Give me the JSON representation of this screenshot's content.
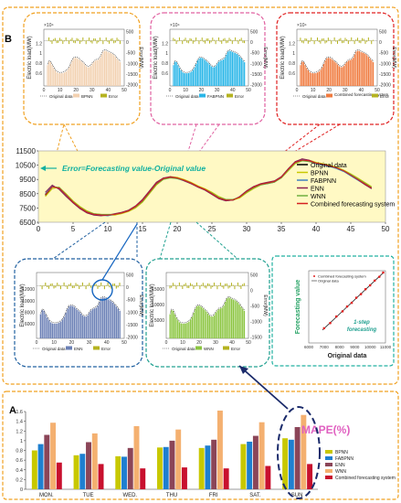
{
  "labels": {
    "panel_b": "B",
    "panel_a": "A",
    "error_eq": "Error=Forecasting value-Original value",
    "mape": "MAPE(%)",
    "step": "1-step",
    "step2": "forecasting",
    "sci": "×10⁴",
    "forecasting_value": "Forecasting value",
    "original_data": "Original data",
    "electric_load": "Electric load(MW)",
    "error_axis": "Error(MW)"
  },
  "colors": {
    "BPNN": "#f2d1b0",
    "FABPNN": "#29b6e8",
    "ENN": "#6a7fb5",
    "WNN": "#8bc540",
    "Combined": "#f07b3f",
    "error_bar": "#b5b320",
    "line_BPNN": "#c8c800",
    "line_FABPNN": "#4080c0",
    "line_ENN": "#8b2252",
    "line_WNN": "#70b040",
    "line_Combined": "#d42020",
    "mape_BPNN": "#c8c800",
    "mape_FABPNN": "#1e7fd0",
    "mape_ENN": "#8b4558",
    "mape_WNN": "#f4b070",
    "mape_Combined": "#c8102e",
    "frame_orange": "#f0a020",
    "frame_pink": "#e060a0",
    "frame_red": "#e02020",
    "frame_blue": "#2060a0",
    "frame_teal": "#20a090"
  },
  "insets": [
    {
      "id": "bpnn",
      "legend": [
        "Original data",
        "BPNN",
        "Error"
      ],
      "color": "#f2d1b0",
      "ticks_left": [
        "1.2",
        "1",
        "0.8",
        "0.6"
      ],
      "ticks_right": [
        "500",
        "0",
        "-500",
        "-1000",
        "-1500",
        "-2000"
      ],
      "ticks_x": [
        "0",
        "10",
        "20",
        "30",
        "40",
        "50"
      ]
    },
    {
      "id": "fabpnn",
      "legend": [
        "Original data",
        "FABPNN",
        "Error"
      ],
      "color": "#29b6e8",
      "ticks_left": [
        "1.2",
        "1",
        "0.8",
        "0.6"
      ],
      "ticks_right": [
        "500",
        "0",
        "-500",
        "-1000",
        "-1500",
        "-2000"
      ],
      "ticks_x": [
        "0",
        "10",
        "20",
        "30",
        "40",
        "50"
      ]
    },
    {
      "id": "combined",
      "legend": [
        "Original data",
        "Combined forecasting system",
        "Error"
      ],
      "color": "#f07b3f",
      "ticks_left": [
        "1.2",
        "1",
        "0.8",
        "0.6"
      ],
      "ticks_right": [
        "500",
        "0",
        "-500",
        "-1000",
        "-1500",
        "-2000"
      ],
      "ticks_x": [
        "0",
        "10",
        "20",
        "30",
        "40",
        "50"
      ]
    },
    {
      "id": "enn",
      "legend": [
        "Original data",
        "ENN",
        "Error"
      ],
      "color": "#6a7fb5",
      "ticks_left": [
        "12000",
        "10000",
        "8000",
        "6000"
      ],
      "ticks_right": [
        "500",
        "0",
        "-500",
        "-1000",
        "-1500",
        "-2000"
      ],
      "ticks_x": [
        "0",
        "10",
        "20",
        "30",
        "40",
        "50"
      ]
    },
    {
      "id": "wnn",
      "legend": [
        "Original data",
        "WNN",
        "Error"
      ],
      "color": "#8bc540",
      "ticks_left": [
        "15000",
        "10000",
        "5000"
      ],
      "ticks_right": [
        "500",
        "0",
        "-500",
        "-1000",
        "-1500"
      ],
      "ticks_x": [
        "0",
        "10",
        "20",
        "30",
        "40",
        "50"
      ]
    }
  ],
  "chart_data": [
    {
      "type": "line",
      "x": [
        1,
        2,
        3,
        4,
        5,
        6,
        7,
        8,
        9,
        10,
        11,
        12,
        13,
        14,
        15,
        16,
        17,
        18,
        19,
        20,
        21,
        22,
        23,
        24,
        25,
        26,
        27,
        28,
        29,
        30,
        31,
        32,
        33,
        34,
        35,
        36,
        37,
        38,
        39,
        40,
        41,
        42,
        43,
        44,
        45,
        46,
        47,
        48
      ],
      "series": [
        {
          "name": "Original data",
          "values": [
            8400,
            9000,
            8900,
            8400,
            7900,
            7500,
            7200,
            7050,
            7000,
            7000,
            7050,
            7150,
            7300,
            7600,
            8000,
            8600,
            9200,
            9550,
            9650,
            9600,
            9450,
            9250,
            9000,
            8800,
            8500,
            8200,
            8050,
            8050,
            8250,
            8650,
            8950,
            9150,
            9250,
            9350,
            9650,
            10200,
            10700,
            10850,
            10800,
            10650,
            10550,
            10450,
            10300,
            10100,
            9800,
            9500,
            9200,
            8900
          ]
        },
        {
          "name": "BPNN",
          "values": [
            8300,
            8850,
            8950,
            8500,
            8000,
            7600,
            7300,
            7100,
            7050,
            7000,
            7000,
            7100,
            7250,
            7500,
            7900,
            8500,
            9100,
            9500,
            9700,
            9650,
            9500,
            9300,
            9050,
            8850,
            8600,
            8300,
            8100,
            8050,
            8200,
            8550,
            8850,
            9100,
            9250,
            9350,
            9600,
            10100,
            10600,
            10800,
            10850,
            10700,
            10600,
            10500,
            10350,
            10150,
            9900,
            9600,
            9300,
            9000
          ]
        },
        {
          "name": "FABPNN",
          "values": [
            8500,
            9050,
            8850,
            8350,
            7850,
            7450,
            7200,
            7050,
            7000,
            6950,
            7050,
            7150,
            7300,
            7600,
            8050,
            8650,
            9200,
            9600,
            9650,
            9550,
            9400,
            9200,
            9000,
            8750,
            8450,
            8150,
            8000,
            8050,
            8300,
            8700,
            9000,
            9150,
            9200,
            9300,
            9650,
            10250,
            10750,
            10900,
            10750,
            10600,
            10500,
            10400,
            10250,
            10050,
            9750,
            9450,
            9150,
            8850
          ]
        },
        {
          "name": "ENN",
          "values": [
            8600,
            9100,
            8800,
            8300,
            7850,
            7450,
            7150,
            7000,
            6950,
            7000,
            7100,
            7200,
            7350,
            7650,
            8100,
            8700,
            9300,
            9600,
            9700,
            9600,
            9400,
            9200,
            8950,
            8750,
            8450,
            8150,
            8000,
            8050,
            8300,
            8700,
            9000,
            9200,
            9300,
            9400,
            9700,
            10250,
            10750,
            10950,
            10850,
            10650,
            10550,
            10450,
            10300,
            10100,
            9800,
            9500,
            9150,
            8850
          ]
        },
        {
          "name": "WNN",
          "values": [
            8450,
            8950,
            8950,
            8450,
            7950,
            7550,
            7250,
            7100,
            7050,
            7050,
            7050,
            7150,
            7300,
            7550,
            7950,
            8550,
            9150,
            9500,
            9600,
            9550,
            9450,
            9250,
            9000,
            8800,
            8550,
            8250,
            8100,
            8100,
            8250,
            8600,
            8900,
            9100,
            9200,
            9300,
            9600,
            10150,
            10650,
            10800,
            10750,
            10650,
            10550,
            10450,
            10300,
            10100,
            9850,
            9550,
            9250,
            8950
          ]
        },
        {
          "name": "Combined forecasting system",
          "values": [
            8420,
            8980,
            8900,
            8410,
            7910,
            7510,
            7210,
            7060,
            7010,
            7000,
            7050,
            7150,
            7300,
            7600,
            8010,
            8610,
            9210,
            9560,
            9660,
            9600,
            9450,
            9250,
            9000,
            8800,
            8500,
            8200,
            8050,
            8060,
            8260,
            8660,
            8960,
            9160,
            9250,
            9350,
            9650,
            10210,
            10700,
            10860,
            10800,
            10650,
            10550,
            10450,
            10300,
            10100,
            9800,
            9500,
            9200,
            8900
          ]
        }
      ],
      "xlim": [
        0,
        50
      ],
      "ylim": [
        6500,
        11500
      ],
      "yticks": [
        "11500",
        "10500",
        "9500",
        "8500",
        "7500",
        "6500"
      ],
      "xticks": [
        "0",
        "5",
        "10",
        "15",
        "20",
        "25",
        "30",
        "35",
        "40",
        "45",
        "50"
      ],
      "legend": "right"
    },
    {
      "type": "bar",
      "categories": [
        "MON.",
        "TUE",
        "WED.",
        "THU",
        "FRI",
        "SAT.",
        "SUN"
      ],
      "series": [
        {
          "name": "BPNN",
          "values": [
            0.8,
            0.7,
            0.68,
            0.86,
            0.85,
            0.93,
            1.05
          ]
        },
        {
          "name": "FABPNN",
          "values": [
            0.93,
            0.73,
            0.67,
            0.87,
            0.9,
            0.98,
            1.02
          ]
        },
        {
          "name": "ENN",
          "values": [
            1.12,
            0.97,
            0.85,
            1.0,
            1.02,
            1.1,
            1.28
          ]
        },
        {
          "name": "WNN",
          "values": [
            1.37,
            1.15,
            1.3,
            1.23,
            1.62,
            1.38,
            1.53
          ]
        },
        {
          "name": "Combined forecasting system",
          "values": [
            0.55,
            0.52,
            0.43,
            0.45,
            0.43,
            0.48,
            0.52
          ]
        }
      ],
      "ylim": [
        0,
        1.6
      ],
      "yticks": [
        "1.6",
        "1.4",
        "1.2",
        "1",
        "0.8",
        "0.6",
        "0.4",
        "0.2",
        "0"
      ],
      "legend": "right"
    },
    {
      "type": "scatter",
      "series": [
        {
          "name": "Combined forecasting system",
          "values": [
            [
              7000,
              7020
            ],
            [
              7400,
              7380
            ],
            [
              7800,
              7830
            ],
            [
              8200,
              8190
            ],
            [
              8500,
              8520
            ],
            [
              8800,
              8780
            ],
            [
              9100,
              9130
            ],
            [
              9400,
              9380
            ],
            [
              9700,
              9720
            ],
            [
              10000,
              9990
            ],
            [
              10300,
              10320
            ],
            [
              10600,
              10580
            ],
            [
              10850,
              10870
            ]
          ]
        }
      ],
      "line_name": "Original data",
      "xlim": [
        6000,
        11000
      ],
      "ylim": [
        6000,
        11000
      ],
      "xticks": [
        "6000",
        "7000",
        "8000",
        "9000",
        "10000",
        "11000"
      ]
    }
  ]
}
